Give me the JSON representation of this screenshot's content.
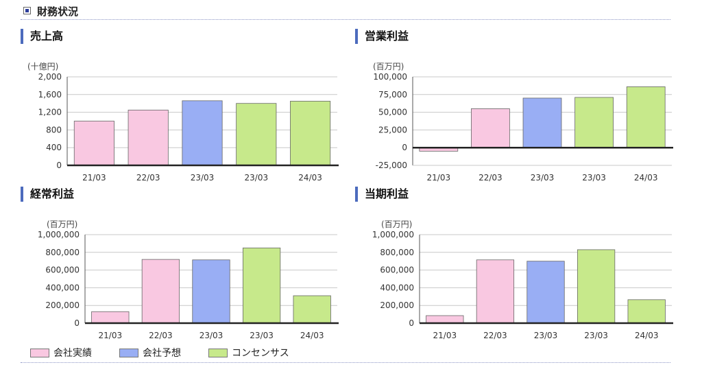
{
  "section": {
    "title": "財務状況"
  },
  "colors": {
    "actual": "#f9c8e1",
    "forecast": "#99aef4",
    "consensus": "#c7e98b"
  },
  "legend": [
    {
      "label": "会社実績",
      "color_key": "actual"
    },
    {
      "label": "会社予想",
      "color_key": "forecast"
    },
    {
      "label": "コンセンサス",
      "color_key": "consensus"
    }
  ],
  "chart_data": [
    {
      "type": "bar",
      "title": "売上高",
      "unit": "(十億円)",
      "categories": [
        "21/03",
        "22/03",
        "23/03",
        "23/03",
        "24/03"
      ],
      "values": [
        1000,
        1250,
        1460,
        1400,
        1450
      ],
      "bar_types": [
        "actual",
        "actual",
        "forecast",
        "consensus",
        "consensus"
      ],
      "ylim": [
        0,
        2000
      ],
      "yticks": [
        0,
        400,
        800,
        1200,
        1600,
        2000
      ],
      "ytick_labels": [
        "0",
        "400",
        "800",
        "1,200",
        "1,600",
        "2,000"
      ],
      "grid": true
    },
    {
      "type": "bar",
      "title": "営業利益",
      "unit": "(百万円)",
      "categories": [
        "21/03",
        "22/03",
        "23/03",
        "23/03",
        "24/03"
      ],
      "values": [
        -5000,
        55000,
        70000,
        71000,
        86000
      ],
      "bar_types": [
        "actual",
        "actual",
        "forecast",
        "consensus",
        "consensus"
      ],
      "ylim": [
        -25000,
        100000
      ],
      "yticks": [
        -25000,
        0,
        25000,
        50000,
        75000,
        100000
      ],
      "ytick_labels": [
        "-25,000",
        "0",
        "25,000",
        "50,000",
        "75,000",
        "100,000"
      ],
      "grid": true
    },
    {
      "type": "bar",
      "title": "経常利益",
      "unit": "(百万円)",
      "categories": [
        "21/03",
        "22/03",
        "23/03",
        "23/03",
        "24/03"
      ],
      "values": [
        130000,
        720000,
        715000,
        850000,
        310000
      ],
      "bar_types": [
        "actual",
        "actual",
        "forecast",
        "consensus",
        "consensus"
      ],
      "ylim": [
        0,
        1000000
      ],
      "yticks": [
        0,
        200000,
        400000,
        600000,
        800000,
        1000000
      ],
      "ytick_labels": [
        "0",
        "200,000",
        "400,000",
        "600,000",
        "800,000",
        "1,000,000"
      ],
      "grid": true
    },
    {
      "type": "bar",
      "title": "当期利益",
      "unit": "(百万円)",
      "categories": [
        "21/03",
        "22/03",
        "23/03",
        "23/03",
        "24/03"
      ],
      "values": [
        85000,
        715000,
        700000,
        830000,
        265000
      ],
      "bar_types": [
        "actual",
        "actual",
        "forecast",
        "consensus",
        "consensus"
      ],
      "ylim": [
        0,
        1000000
      ],
      "yticks": [
        0,
        200000,
        400000,
        600000,
        800000,
        1000000
      ],
      "ytick_labels": [
        "0",
        "200,000",
        "400,000",
        "600,000",
        "800,000",
        "1,000,000"
      ],
      "grid": true
    }
  ]
}
